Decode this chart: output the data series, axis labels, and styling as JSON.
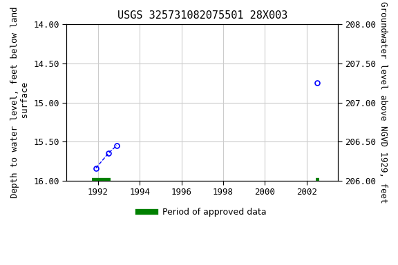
{
  "title": "USGS 325731082075501 28X003",
  "ylabel_left": "Depth to water level, feet below land\n surface",
  "ylabel_right": "Groundwater level above NGVD 1929, feet",
  "xlim": [
    1990.5,
    2003.5
  ],
  "ylim_left": [
    16.0,
    14.0
  ],
  "ylim_right": [
    206.0,
    208.0
  ],
  "yticks_left": [
    14.0,
    14.5,
    15.0,
    15.5,
    16.0
  ],
  "yticks_right": [
    206.0,
    206.5,
    207.0,
    207.5,
    208.0
  ],
  "xticks": [
    1992,
    1994,
    1996,
    1998,
    2000,
    2002
  ],
  "data_x": [
    1991.9,
    1992.5,
    1992.9,
    2002.5
  ],
  "data_y": [
    15.84,
    15.65,
    15.55,
    14.75
  ],
  "connected_indices": [
    0,
    1,
    2
  ],
  "bar_periods": [
    {
      "x_start": 1991.7,
      "x_end": 1992.6,
      "y": 16.0
    },
    {
      "x_start": 2002.45,
      "x_end": 2002.6,
      "y": 16.0
    }
  ],
  "point_color": "blue",
  "line_color": "blue",
  "bar_color": "#008000",
  "background_color": "#ffffff",
  "grid_color": "#cccccc",
  "font_color": "#000000",
  "title_fontsize": 11,
  "label_fontsize": 9,
  "tick_fontsize": 9,
  "legend_label": "Period of approved data"
}
